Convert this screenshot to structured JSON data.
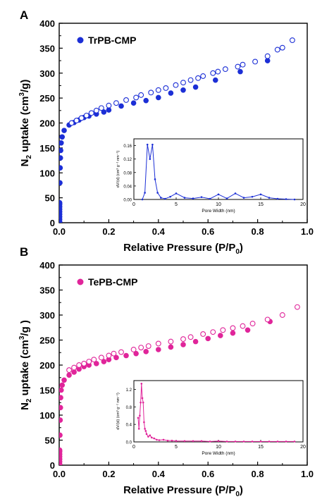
{
  "chart_data": [
    {
      "panel_label": "A",
      "type": "scatter",
      "xlabel": "Relative Pressure (P/P",
      "xlabel_sub": "0",
      "xlabel_end": ")",
      "ylabel_pre": "N",
      "ylabel_sub": "2",
      "ylabel_mid": " uptake (cm",
      "ylabel_sup": "3",
      "ylabel_end": "/g)",
      "xlim": [
        0,
        1.0
      ],
      "ylim": [
        0,
        400
      ],
      "xticks": [
        "0.0",
        "0.2",
        "0.4",
        "0.6",
        "0.8",
        "1.0"
      ],
      "yticks": [
        "0",
        "50",
        "100",
        "150",
        "200",
        "250",
        "300",
        "350",
        "400"
      ],
      "legend_position": "top-left",
      "color": "#1c2fd6",
      "series": [
        {
          "name": "TrPB-CMP",
          "marker": "filled",
          "x": [
            0.002,
            0.003,
            0.004,
            0.005,
            0.006,
            0.008,
            0.012,
            0.02,
            0.04,
            0.06,
            0.08,
            0.1,
            0.12,
            0.15,
            0.18,
            0.2,
            0.25,
            0.3,
            0.35,
            0.4,
            0.45,
            0.5,
            0.55,
            0.63,
            0.73,
            0.84
          ],
          "y": [
            40,
            80,
            110,
            130,
            145,
            160,
            172,
            185,
            196,
            201,
            206,
            211,
            214,
            218,
            222,
            226,
            234,
            240,
            245,
            251,
            260,
            266,
            272,
            286,
            303,
            325
          ]
        },
        {
          "name": "TrPB-CMP desorption",
          "marker": "open",
          "x": [
            0.05,
            0.07,
            0.09,
            0.11,
            0.13,
            0.15,
            0.17,
            0.2,
            0.23,
            0.27,
            0.31,
            0.33,
            0.37,
            0.4,
            0.43,
            0.47,
            0.5,
            0.53,
            0.56,
            0.58,
            0.62,
            0.64,
            0.67,
            0.72,
            0.74,
            0.79,
            0.84,
            0.88,
            0.9,
            0.94
          ],
          "y": [
            200,
            205,
            210,
            215,
            220,
            225,
            230,
            235,
            240,
            246,
            251,
            256,
            261,
            266,
            270,
            276,
            281,
            286,
            290,
            294,
            300,
            303,
            308,
            313,
            317,
            323,
            334,
            347,
            351,
            366
          ]
        }
      ],
      "inset": {
        "type": "line",
        "xlabel": "Pore Width (nm)",
        "ylabel": "dV/(d) (cm³ g⁻¹ nm⁻¹)",
        "xlim": [
          0,
          20
        ],
        "ylim": [
          0,
          0.18
        ],
        "xticks": [
          "0",
          "5",
          "10",
          "15",
          "20"
        ],
        "yticks": [
          "0.00",
          "0.04",
          "0.08",
          "0.12",
          "0.16"
        ],
        "x": [
          1.0,
          1.3,
          1.6,
          1.9,
          2.2,
          2.5,
          2.8,
          3.2,
          3.7,
          4.3,
          5.0,
          6.0,
          7.0,
          8.0,
          9.0,
          10.0,
          11.0,
          12.0,
          13.0,
          14.0,
          15.0,
          16.0,
          17.0,
          18.0,
          19.0
        ],
        "y": [
          0.0,
          0.02,
          0.163,
          0.12,
          0.163,
          0.06,
          0.02,
          0.005,
          0.002,
          0.008,
          0.018,
          0.005,
          0.003,
          0.007,
          0.002,
          0.015,
          0.003,
          0.018,
          0.005,
          0.008,
          0.015,
          0.005,
          0.002,
          0.001,
          0.0
        ]
      }
    },
    {
      "panel_label": "B",
      "type": "scatter",
      "xlabel": "Relative Pressure (P/P",
      "xlabel_sub": "0",
      "xlabel_end": ")",
      "ylabel_pre": "N",
      "ylabel_sub": "2",
      "ylabel_mid": " uptake (cm",
      "ylabel_sup": "3",
      "ylabel_end": "/g )",
      "xlim": [
        0,
        1.0
      ],
      "ylim": [
        0,
        400
      ],
      "xticks": [
        "0.0",
        "0.2",
        "0.4",
        "0.6",
        "0.8",
        "1.0"
      ],
      "yticks": [
        "0",
        "50",
        "100",
        "150",
        "200",
        "250",
        "300",
        "350",
        "400"
      ],
      "legend_position": "top-left",
      "color": "#e0259a",
      "series": [
        {
          "name": "TePB-CMP",
          "marker": "filled",
          "x": [
            0.002,
            0.003,
            0.004,
            0.005,
            0.006,
            0.008,
            0.012,
            0.02,
            0.04,
            0.06,
            0.08,
            0.1,
            0.12,
            0.15,
            0.18,
            0.2,
            0.23,
            0.27,
            0.31,
            0.35,
            0.4,
            0.45,
            0.5,
            0.55,
            0.6,
            0.65,
            0.7,
            0.76,
            0.85
          ],
          "y": [
            30,
            60,
            90,
            115,
            135,
            150,
            160,
            170,
            180,
            186,
            192,
            197,
            200,
            203,
            207,
            211,
            215,
            219,
            223,
            227,
            231,
            236,
            241,
            247,
            253,
            259,
            264,
            270,
            287
          ]
        },
        {
          "name": "TePB-CMP desorption",
          "marker": "open",
          "x": [
            0.04,
            0.06,
            0.08,
            0.1,
            0.12,
            0.14,
            0.17,
            0.2,
            0.22,
            0.25,
            0.3,
            0.33,
            0.36,
            0.4,
            0.45,
            0.5,
            0.53,
            0.58,
            0.62,
            0.66,
            0.7,
            0.74,
            0.78,
            0.84,
            0.9,
            0.96
          ],
          "y": [
            190,
            195,
            200,
            203,
            207,
            211,
            215,
            219,
            223,
            226,
            231,
            235,
            238,
            243,
            247,
            252,
            256,
            262,
            266,
            270,
            274,
            278,
            283,
            291,
            300,
            316
          ]
        }
      ],
      "inset": {
        "type": "line",
        "xlabel": "Pore Width (nm)",
        "ylabel": "dV/(d) (cm³ g⁻¹ nm⁻¹)",
        "xlim": [
          0,
          20
        ],
        "ylim": [
          0,
          1.4
        ],
        "xticks": [
          "0",
          "5",
          "10",
          "15",
          "20"
        ],
        "yticks": [
          "0.0",
          "0.4",
          "0.8",
          "1.2"
        ],
        "x": [
          0.5,
          0.6,
          0.7,
          0.8,
          0.9,
          1.0,
          1.1,
          1.2,
          1.3,
          1.4,
          1.5,
          1.7,
          1.9,
          2.1,
          2.4,
          2.7,
          3.0,
          3.5,
          4.0,
          4.5,
          5.0,
          6.0,
          7.0,
          8.0,
          9.0,
          10.0,
          11.0,
          12.0,
          13.0,
          14.0,
          15.0,
          16.0,
          17.0,
          18.0,
          19.0
        ],
        "y": [
          0.55,
          0.3,
          0.6,
          0.9,
          1.33,
          1.0,
          0.9,
          0.45,
          0.3,
          0.25,
          0.18,
          0.12,
          0.15,
          0.1,
          0.08,
          0.05,
          0.04,
          0.05,
          0.03,
          0.03,
          0.02,
          0.02,
          0.02,
          0.02,
          0.01,
          0.02,
          0.01,
          0.01,
          0.01,
          0.01,
          0.01,
          0.01,
          0.01,
          0.01,
          0.01
        ]
      }
    }
  ]
}
